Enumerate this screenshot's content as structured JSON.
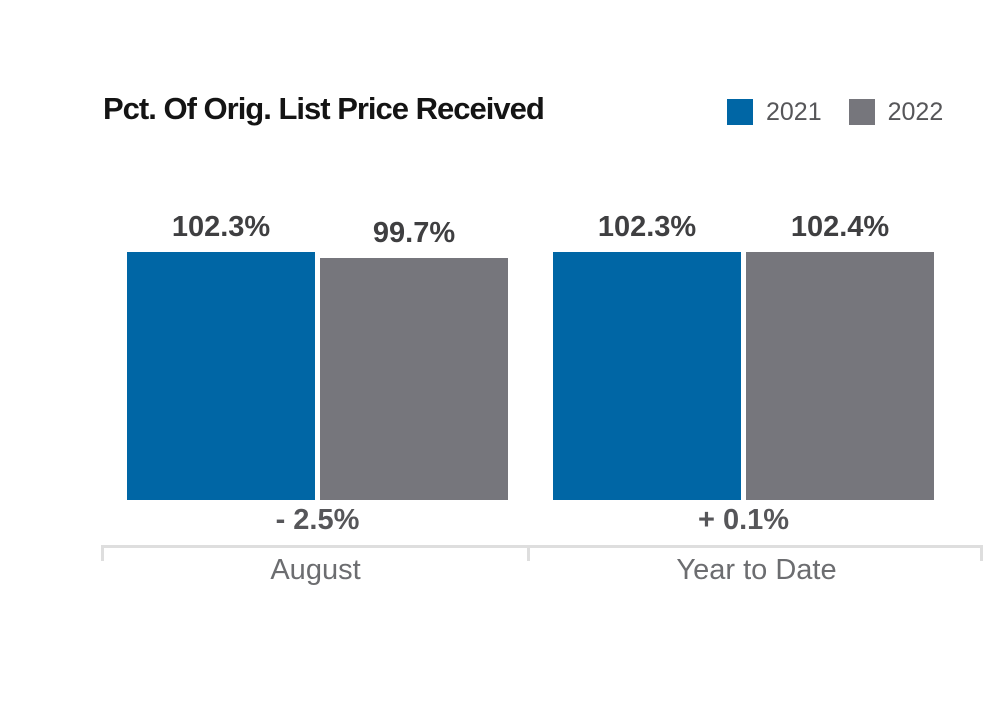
{
  "title": "Pct. Of Orig. List Price Received",
  "legend": {
    "items": [
      {
        "label": "2021",
        "color": "#0066A5"
      },
      {
        "label": "2022",
        "color": "#76767C"
      }
    ]
  },
  "colors": {
    "series_2021": "#0066A5",
    "series_2022": "#76767C",
    "axis_line": "#DEDEDE",
    "title_text": "#141414",
    "value_label_text": "#3F3F41",
    "change_label_text": "#565659",
    "category_label_text": "#6C6D70"
  },
  "groups": [
    {
      "category": "August",
      "change_label": "- 2.5%",
      "bars": [
        {
          "series": "2021",
          "value": 102.3,
          "label": "102.3%"
        },
        {
          "series": "2022",
          "value": 99.7,
          "label": "99.7%"
        }
      ]
    },
    {
      "category": "Year to Date",
      "change_label": "+ 0.1%",
      "bars": [
        {
          "series": "2021",
          "value": 102.3,
          "label": "102.3%"
        },
        {
          "series": "2022",
          "value": 102.4,
          "label": "102.4%"
        }
      ]
    }
  ],
  "chart_data": {
    "type": "bar",
    "title": "Pct. Of Orig. List Price Received",
    "categories": [
      "August",
      "Year to Date"
    ],
    "series": [
      {
        "name": "2021",
        "color": "#0066A5",
        "values": [
          102.3,
          102.3
        ]
      },
      {
        "name": "2022",
        "color": "#76767C",
        "values": [
          99.7,
          102.4
        ]
      }
    ],
    "value_labels": [
      [
        "102.3%",
        "99.7%"
      ],
      [
        "102.3%",
        "102.4%"
      ]
    ],
    "change_annotations": [
      "- 2.5%",
      "+ 0.1%"
    ],
    "ylabel": "",
    "xlabel": "",
    "ylim": [
      0,
      103
    ],
    "grid": false,
    "legend_position": "top-right"
  }
}
